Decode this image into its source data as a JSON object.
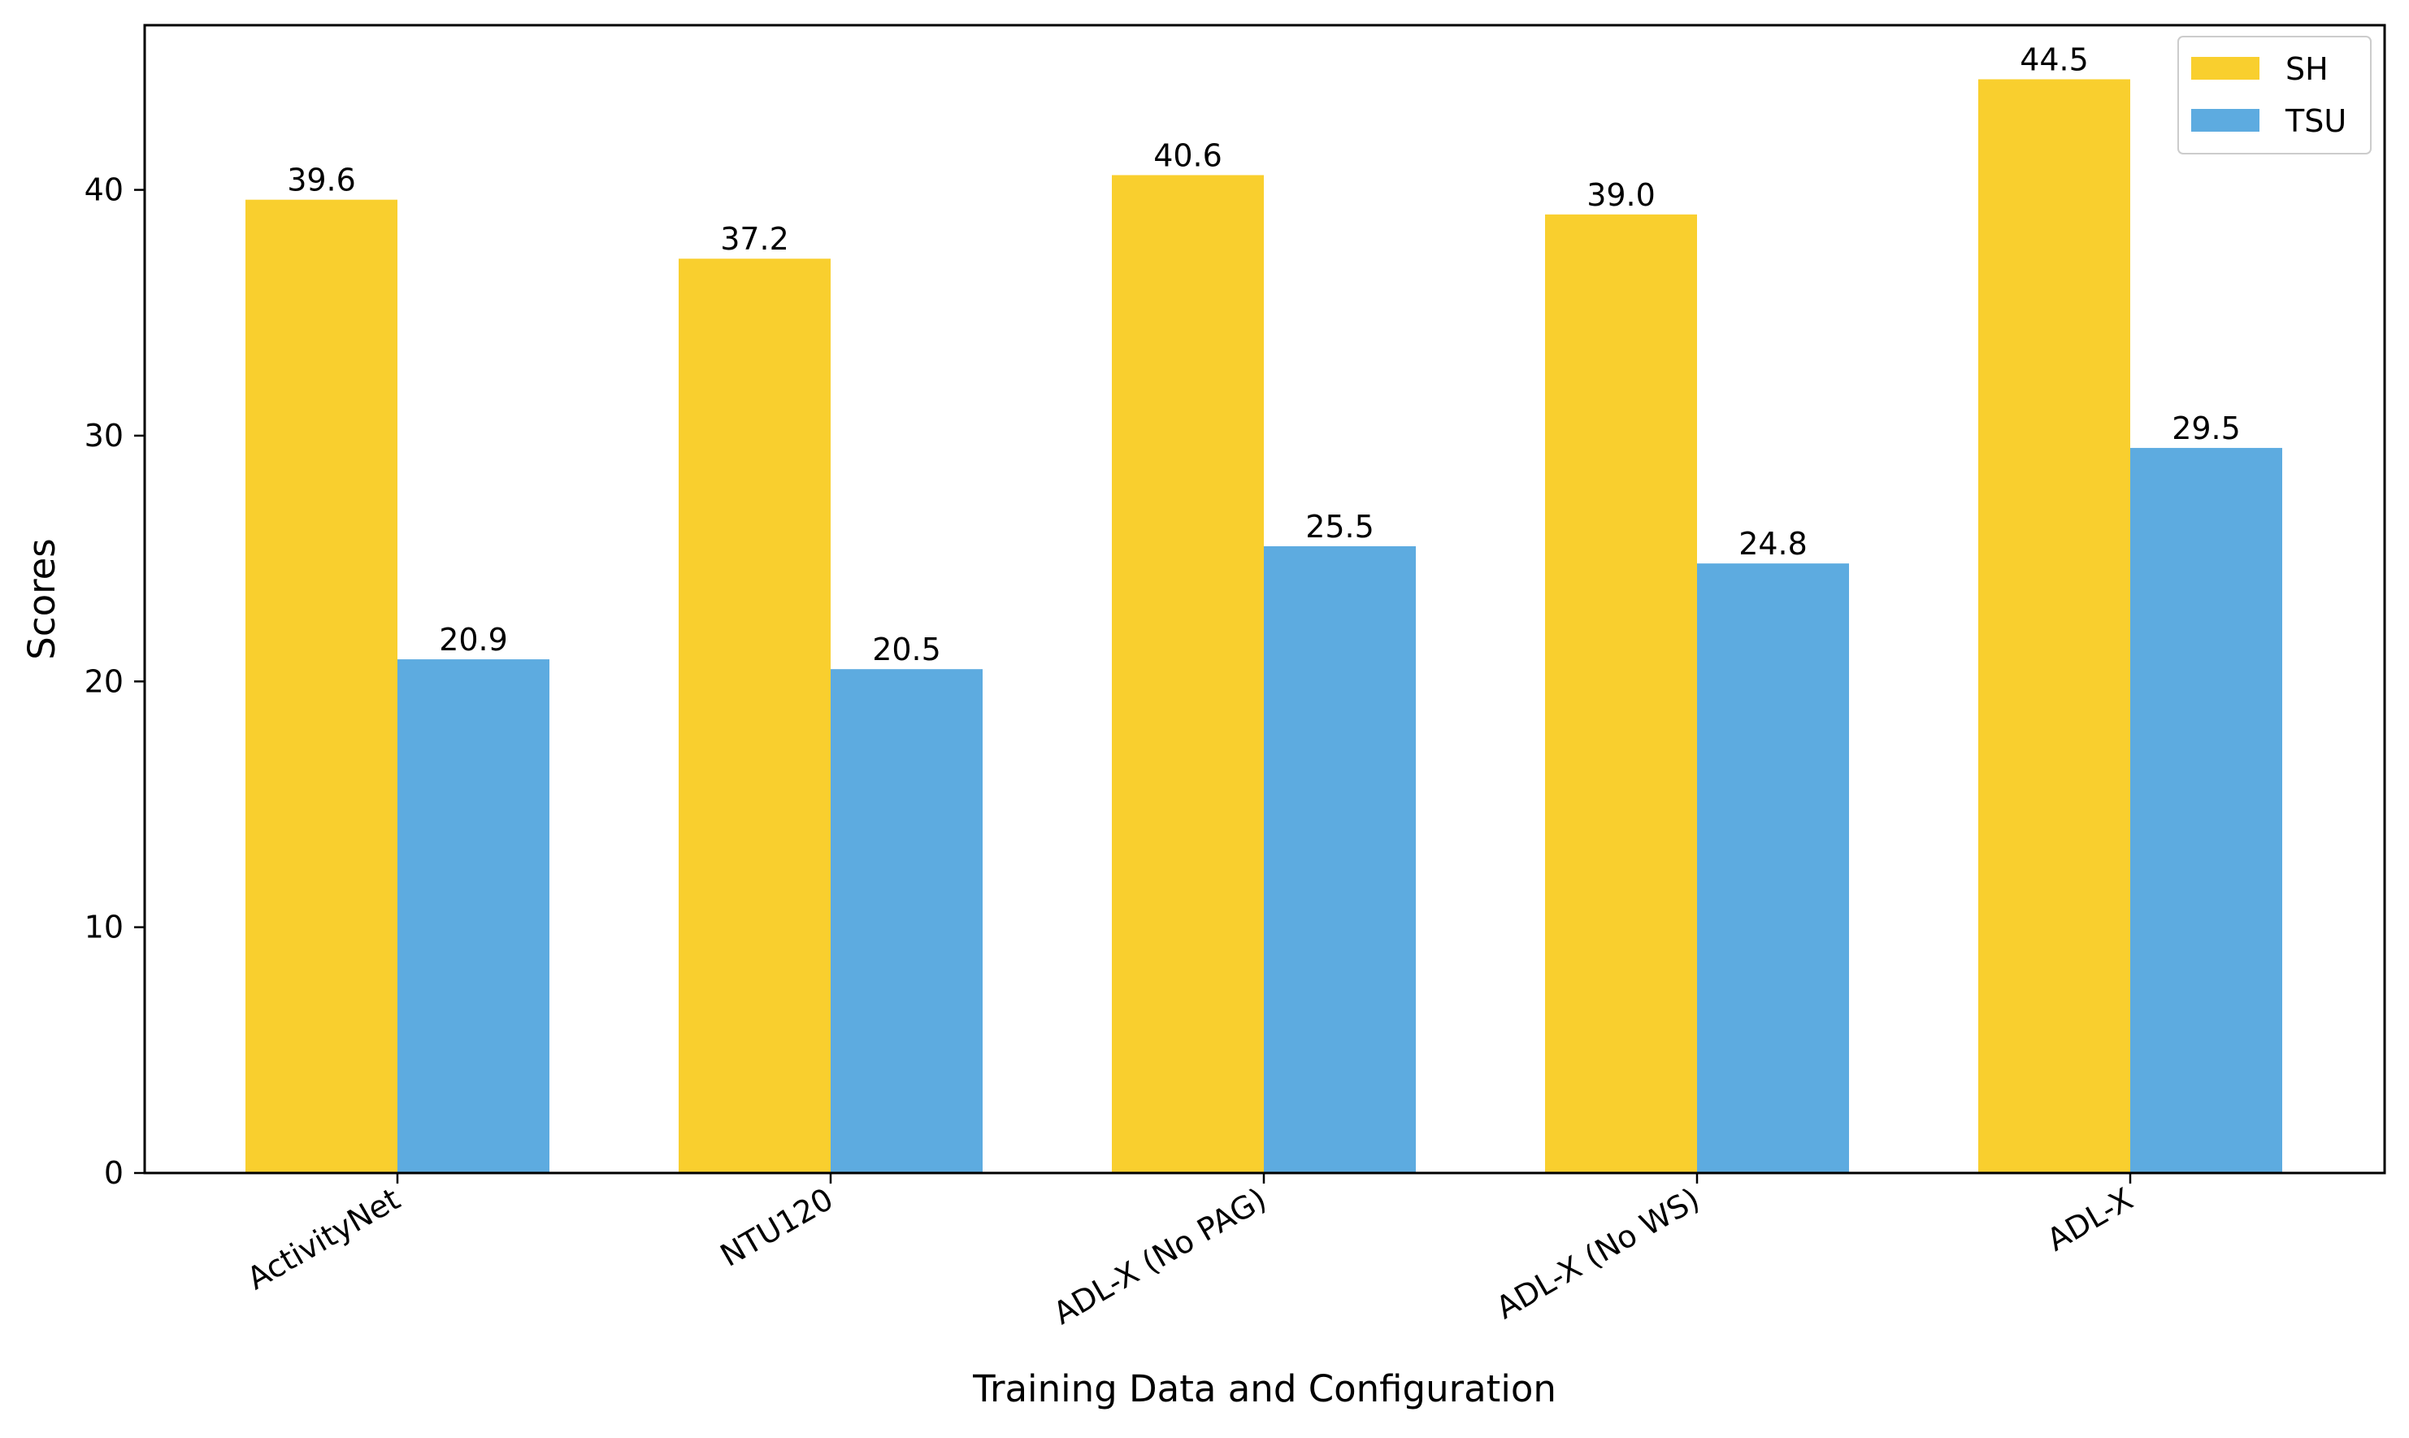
{
  "chart_data": {
    "type": "bar",
    "title": "",
    "xlabel": "Training Data and Configuration",
    "ylabel": "Scores",
    "categories": [
      "ActivityNet",
      "NTU120",
      "ADL-X (No PAG)",
      "ADL-X (No WS)",
      "ADL-X"
    ],
    "series": [
      {
        "name": "SH",
        "color": "#F9CF2E",
        "values": [
          39.6,
          37.2,
          40.6,
          39.0,
          44.5
        ],
        "labels": [
          "39.6",
          "37.2",
          "40.6",
          "39.0",
          "44.5"
        ]
      },
      {
        "name": "TSU",
        "color": "#5DABE0",
        "values": [
          20.9,
          20.5,
          25.5,
          24.8,
          29.5
        ],
        "labels": [
          "20.9",
          "20.5",
          "25.5",
          "24.8",
          "29.5"
        ]
      }
    ],
    "yticks": [
      0,
      10,
      20,
      30,
      40
    ],
    "ytick_labels": [
      "0",
      "10",
      "20",
      "30",
      "40"
    ],
    "ylim": [
      0,
      46.7
    ],
    "grid": false,
    "legend_position": "top-right",
    "xtick_rotation": "30 degrees"
  }
}
